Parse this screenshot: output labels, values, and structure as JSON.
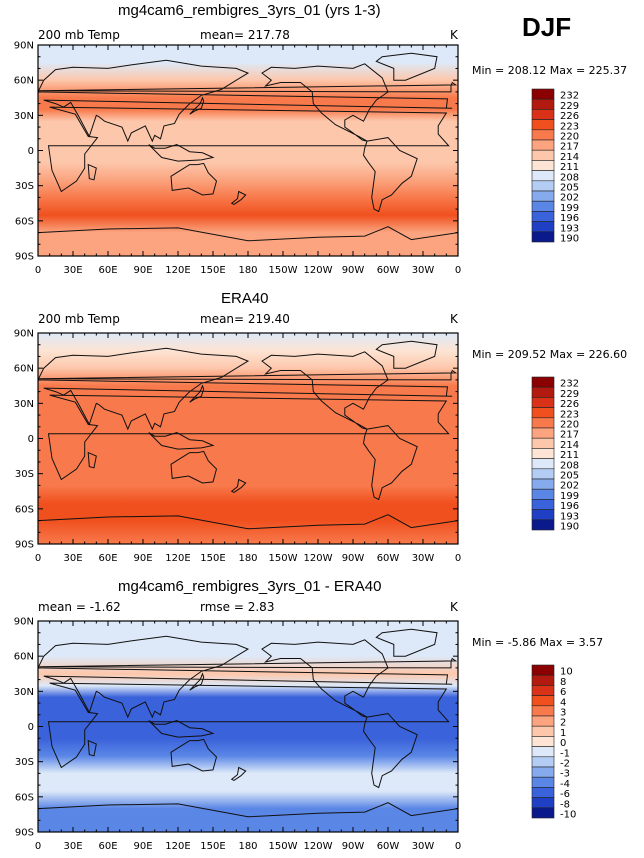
{
  "season": "DJF",
  "chart_data": [
    {
      "type": "heatmap",
      "title": "mg4cam6_rembigres_3yrs_01 (yrs 1-3)",
      "left_label": "200 mb Temp",
      "center_label": "mean= 217.78",
      "units": "K",
      "min_max": "Min = 208.12 Max = 225.37",
      "colorbar_levels": [
        "232",
        "229",
        "226",
        "223",
        "220",
        "217",
        "214",
        "211",
        "208",
        "205",
        "202",
        "199",
        "196",
        "193",
        "190"
      ],
      "colorbar_colors": [
        "#8b0000",
        "#b31a0f",
        "#d93219",
        "#f0501e",
        "#f87a4c",
        "#fba47f",
        "#fdc7ab",
        "#fde4d4",
        "#dde9f8",
        "#b3cdf5",
        "#86aaee",
        "#5a86e6",
        "#3a62da",
        "#1f3fc4",
        "#0a1a8c"
      ],
      "x_ticks": [
        "0",
        "30E",
        "60E",
        "90E",
        "120E",
        "150E",
        "180",
        "150W",
        "120W",
        "90W",
        "60W",
        "30W",
        "0"
      ],
      "y_ticks": [
        "90N",
        "60N",
        "30N",
        "0",
        "30S",
        "60S",
        "90S"
      ],
      "field": {
        "latitude": [
          90,
          75,
          60,
          45,
          35,
          25,
          10,
          0,
          -10,
          -25,
          -40,
          -55,
          -70,
          -90
        ],
        "value": [
          209.0,
          210.5,
          214.0,
          221.5,
          221.0,
          216.5,
          215.5,
          215.5,
          215.5,
          217.5,
          221.5,
          224.5,
          219.0,
          218.0
        ]
      }
    },
    {
      "type": "heatmap",
      "title": "ERA40",
      "left_label": "200 mb Temp",
      "center_label": "mean= 219.40",
      "units": "K",
      "min_max": "Min = 209.52 Max = 226.60",
      "colorbar_levels": [
        "232",
        "229",
        "226",
        "223",
        "220",
        "217",
        "214",
        "211",
        "208",
        "205",
        "202",
        "199",
        "196",
        "193",
        "190"
      ],
      "colorbar_colors": [
        "#8b0000",
        "#b31a0f",
        "#d93219",
        "#f0501e",
        "#f87a4c",
        "#fba47f",
        "#fdc7ab",
        "#fde4d4",
        "#dde9f8",
        "#b3cdf5",
        "#86aaee",
        "#5a86e6",
        "#3a62da",
        "#1f3fc4",
        "#0a1a8c"
      ],
      "x_ticks": [
        "0",
        "30E",
        "60E",
        "90E",
        "120E",
        "150E",
        "180",
        "150W",
        "120W",
        "90W",
        "60W",
        "30W",
        "0"
      ],
      "y_ticks": [
        "90N",
        "60N",
        "30N",
        "0",
        "30S",
        "60S",
        "90S"
      ],
      "field": {
        "latitude": [
          90,
          75,
          60,
          45,
          35,
          25,
          10,
          0,
          -10,
          -25,
          -40,
          -55,
          -70,
          -90
        ],
        "value": [
          210.0,
          211.0,
          215.0,
          220.5,
          222.0,
          221.0,
          220.5,
          220.5,
          220.5,
          221.0,
          222.0,
          225.0,
          223.0,
          221.5
        ]
      }
    },
    {
      "type": "heatmap",
      "title": "mg4cam6_rembigres_3yrs_01 - ERA40",
      "left_label": "mean =  -1.62",
      "center_label": "rmse =    2.83",
      "units": "K",
      "min_max": "Min =  -5.86 Max =    3.57",
      "colorbar_levels": [
        "10",
        "8",
        "6",
        "4",
        "3",
        "2",
        "1",
        "0",
        "-1",
        "-2",
        "-3",
        "-4",
        "-6",
        "-8",
        "-10"
      ],
      "colorbar_colors": [
        "#8b0000",
        "#b31a0f",
        "#d93219",
        "#f0501e",
        "#f87a4c",
        "#fba47f",
        "#fdc7ab",
        "#fde4d4",
        "#dde9f8",
        "#b3cdf5",
        "#86aaee",
        "#5a86e6",
        "#3a62da",
        "#1f3fc4",
        "#0a1a8c"
      ],
      "x_ticks": [
        "0",
        "30E",
        "60E",
        "90E",
        "120E",
        "150E",
        "180",
        "150W",
        "120W",
        "90W",
        "60W",
        "30W",
        "0"
      ],
      "y_ticks": [
        "90N",
        "60N",
        "30N",
        "0",
        "30S",
        "60S",
        "90S"
      ],
      "field": {
        "latitude": [
          90,
          75,
          60,
          45,
          35,
          25,
          10,
          0,
          -10,
          -25,
          -40,
          -55,
          -70,
          -90
        ],
        "value": [
          -1.0,
          -0.5,
          -1.0,
          1.0,
          -1.0,
          -4.5,
          -5.0,
          -5.0,
          -5.0,
          -3.5,
          -0.5,
          -1.0,
          -4.0,
          -3.5
        ]
      }
    }
  ]
}
